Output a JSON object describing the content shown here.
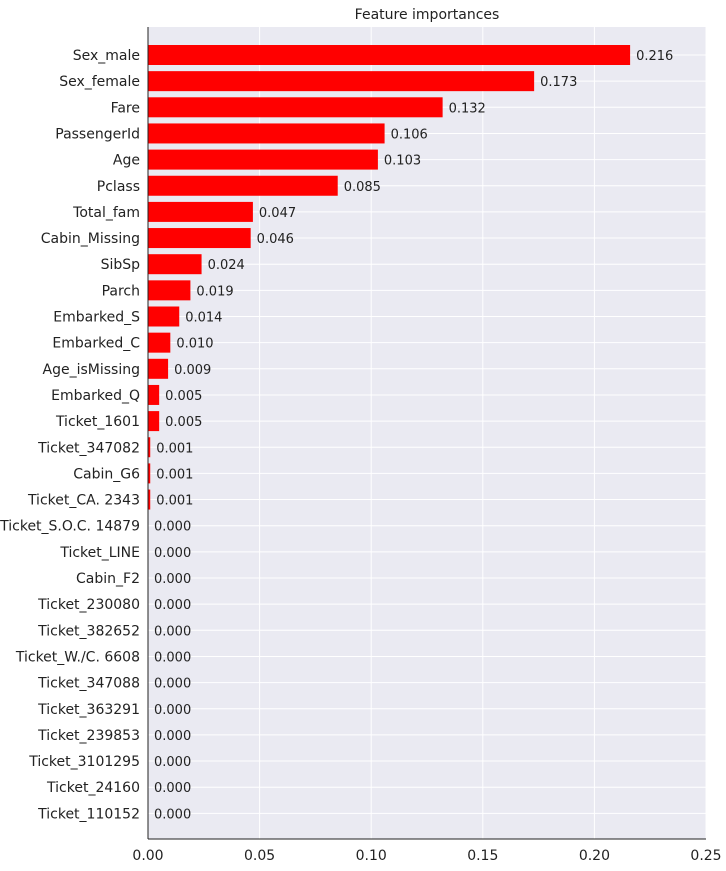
{
  "chart_data": {
    "type": "bar",
    "orientation": "horizontal",
    "title": "Feature importances",
    "xlabel": "",
    "ylabel": "",
    "xlim": [
      0,
      0.25
    ],
    "x_ticks": [
      "0.00",
      "0.05",
      "0.10",
      "0.15",
      "0.20",
      "0.25"
    ],
    "x_tick_values": [
      0,
      0.05,
      0.1,
      0.15,
      0.2,
      0.25
    ],
    "grid": true,
    "bar_color": "#ff0000",
    "background_color": "#eaeaf2",
    "categories": [
      "Sex_male",
      "Sex_female",
      "Fare",
      "PassengerId",
      "Age",
      "Pclass",
      "Total_fam",
      "Cabin_Missing",
      "SibSp",
      "Parch",
      "Embarked_S",
      "Embarked_C",
      "Age_isMissing",
      "Embarked_Q",
      "Ticket_1601",
      "Ticket_347082",
      "Cabin_G6",
      "Ticket_CA. 2343",
      "Ticket_S.O.C. 14879",
      "Ticket_LINE",
      "Cabin_F2",
      "Ticket_230080",
      "Ticket_382652",
      "Ticket_W./C. 6608",
      "Ticket_347088",
      "Ticket_363291",
      "Ticket_239853",
      "Ticket_3101295",
      "Ticket_24160",
      "Ticket_110152"
    ],
    "values": [
      0.216,
      0.173,
      0.132,
      0.106,
      0.103,
      0.085,
      0.047,
      0.046,
      0.024,
      0.019,
      0.014,
      0.01,
      0.009,
      0.005,
      0.005,
      0.001,
      0.001,
      0.001,
      0.0,
      0.0,
      0.0,
      0.0,
      0.0,
      0.0,
      0.0,
      0.0,
      0.0,
      0.0,
      0.0,
      0.0
    ],
    "value_labels": [
      "0.216",
      "0.173",
      "0.132",
      "0.106",
      "0.103",
      "0.085",
      "0.047",
      "0.046",
      "0.024",
      "0.019",
      "0.014",
      "0.010",
      "0.009",
      "0.005",
      "0.005",
      "0.001",
      "0.001",
      "0.001",
      "0.000",
      "0.000",
      "0.000",
      "0.000",
      "0.000",
      "0.000",
      "0.000",
      "0.000",
      "0.000",
      "0.000",
      "0.000",
      "0.000"
    ]
  }
}
